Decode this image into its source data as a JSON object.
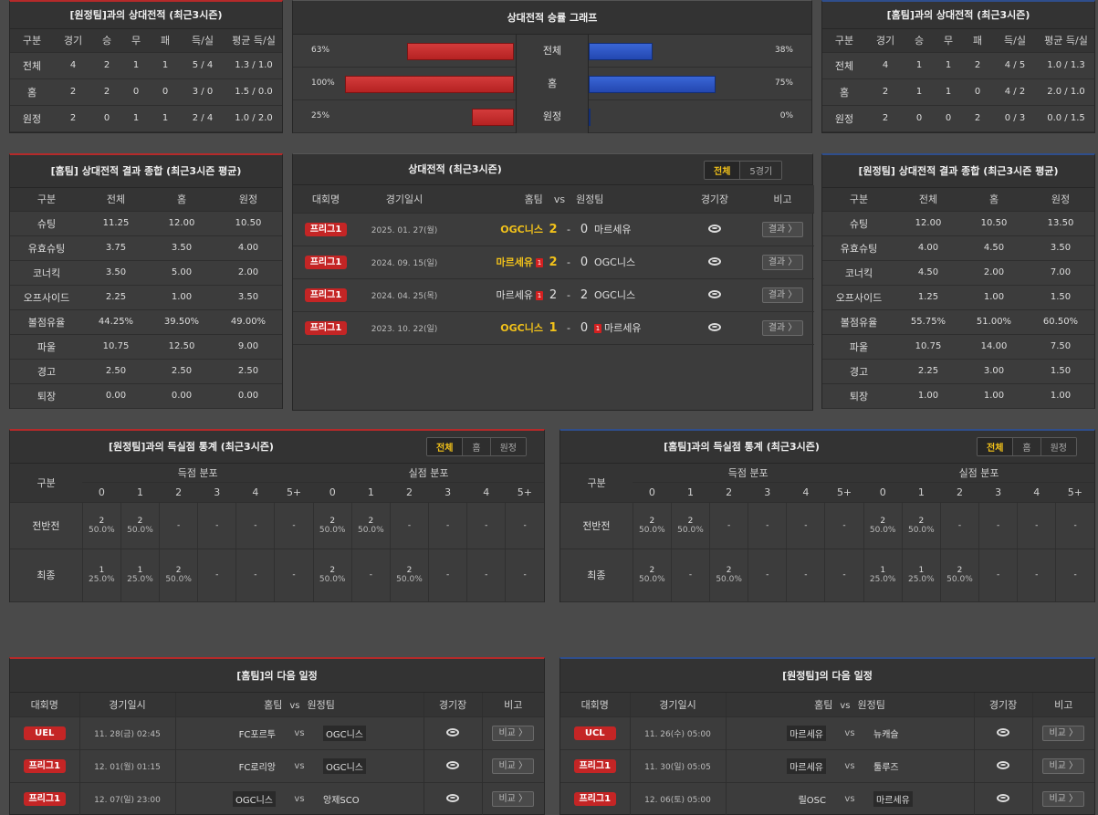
{
  "h2h_away": {
    "title": "[원정팀]과의 상대전적 (최근3시즌)",
    "headers": [
      "구분",
      "경기",
      "승",
      "무",
      "패",
      "득/실",
      "평균 득/실"
    ],
    "rows": [
      [
        "전체",
        "4",
        "2",
        "1",
        "1",
        "5 / 4",
        "1.3 / 1.0"
      ],
      [
        "홈",
        "2",
        "2",
        "0",
        "0",
        "3 / 0",
        "1.5 / 0.0"
      ],
      [
        "원정",
        "2",
        "0",
        "1",
        "1",
        "2 / 4",
        "1.0 / 2.0"
      ]
    ]
  },
  "graph": {
    "title": "상대전적 승률 그래프",
    "rows": [
      {
        "label": "전체",
        "home_pct": "63%",
        "away_pct": "38%",
        "home": 0.63,
        "away": 0.38
      },
      {
        "label": "홈",
        "home_pct": "100%",
        "away_pct": "75%",
        "home": 1.0,
        "away": 0.75
      },
      {
        "label": "원정",
        "home_pct": "25%",
        "away_pct": "0%",
        "home": 0.25,
        "away": 0.0
      }
    ]
  },
  "h2h_home": {
    "title": "[홈팀]과의 상대전적 (최근3시즌)",
    "headers": [
      "구분",
      "경기",
      "승",
      "무",
      "패",
      "득/실",
      "평균 득/실"
    ],
    "rows": [
      [
        "전체",
        "4",
        "1",
        "1",
        "2",
        "4 / 5",
        "1.0 / 1.3"
      ],
      [
        "홈",
        "2",
        "1",
        "1",
        "0",
        "4 / 2",
        "2.0 / 1.0"
      ],
      [
        "원정",
        "2",
        "0",
        "0",
        "2",
        "0 / 3",
        "0.0 / 1.5"
      ]
    ]
  },
  "home_summary": {
    "title": "[홈팀] 상대전적 결과 종합 (최근3시즌 평균)",
    "headers": [
      "구분",
      "전체",
      "홈",
      "원정"
    ],
    "rows": [
      [
        "슈팅",
        "11.25",
        "12.00",
        "10.50"
      ],
      [
        "유효슈팅",
        "3.75",
        "3.50",
        "4.00"
      ],
      [
        "코너킥",
        "3.50",
        "5.00",
        "2.00"
      ],
      [
        "오프사이드",
        "2.25",
        "1.00",
        "3.50"
      ],
      [
        "볼점유율",
        "44.25%",
        "39.50%",
        "49.00%"
      ],
      [
        "파울",
        "10.75",
        "12.50",
        "9.00"
      ],
      [
        "경고",
        "2.50",
        "2.50",
        "2.50"
      ],
      [
        "퇴장",
        "0.00",
        "0.00",
        "0.00"
      ]
    ]
  },
  "results": {
    "title": "상대전적 (최근3시즌)",
    "tabs": [
      "전체",
      "5경기"
    ],
    "headers": {
      "comp": "대회명",
      "date": "경기일시",
      "home": "홈팀",
      "vs": "vs",
      "away": "원정팀",
      "venue": "경기장",
      "note": "비고"
    },
    "rows": [
      {
        "comp": "프리그1",
        "date": "2025. 01. 27(월)",
        "home": "OGC니스",
        "hs": "2",
        "as": "0",
        "away": "마르세유",
        "hl": true,
        "hc": "",
        "ac": "",
        "btn": "결과 〉"
      },
      {
        "comp": "프리그1",
        "date": "2024. 09. 15(일)",
        "home": "마르세유",
        "hs": "2",
        "as": "0",
        "away": "OGC니스",
        "hl": true,
        "hc": "1",
        "ac": "",
        "btn": "결과 〉"
      },
      {
        "comp": "프리그1",
        "date": "2024. 04. 25(목)",
        "home": "마르세유",
        "hs": "2",
        "as": "2",
        "away": "OGC니스",
        "hl": false,
        "hc": "1",
        "ac": "",
        "btn": "결과 〉"
      },
      {
        "comp": "프리그1",
        "date": "2023. 10. 22(일)",
        "home": "OGC니스",
        "hs": "1",
        "as": "0",
        "away": "마르세유",
        "hl": true,
        "hc": "",
        "ac": "1",
        "btn": "결과 〉"
      }
    ]
  },
  "away_summary": {
    "title": "[원정팀] 상대전적 결과 종합 (최근3시즌 평균)",
    "headers": [
      "구분",
      "전체",
      "홈",
      "원정"
    ],
    "rows": [
      [
        "슈팅",
        "12.00",
        "10.50",
        "13.50"
      ],
      [
        "유효슈팅",
        "4.00",
        "4.50",
        "3.50"
      ],
      [
        "코너킥",
        "4.50",
        "2.00",
        "7.00"
      ],
      [
        "오프사이드",
        "1.25",
        "1.00",
        "1.50"
      ],
      [
        "볼점유율",
        "55.75%",
        "51.00%",
        "60.50%"
      ],
      [
        "파울",
        "10.75",
        "14.00",
        "7.50"
      ],
      [
        "경고",
        "2.25",
        "3.00",
        "1.50"
      ],
      [
        "퇴장",
        "1.00",
        "1.00",
        "1.00"
      ]
    ]
  },
  "goals_away": {
    "title": "[원정팀]과의 득실점 통계 (최근3시즌)",
    "tabs": [
      "전체",
      "홈",
      "원정"
    ],
    "label": "구분",
    "scored": "득점 분포",
    "conceded": "실점 분포",
    "cols": [
      "0",
      "1",
      "2",
      "3",
      "4",
      "5+"
    ],
    "rows": [
      {
        "label": "전반전",
        "cells": [
          [
            "2",
            "50.0%"
          ],
          [
            "2",
            "50.0%"
          ],
          [
            "-",
            ""
          ],
          [
            "-",
            ""
          ],
          [
            "-",
            ""
          ],
          [
            "-",
            ""
          ],
          [
            "2",
            "50.0%"
          ],
          [
            "2",
            "50.0%"
          ],
          [
            "-",
            ""
          ],
          [
            "-",
            ""
          ],
          [
            "-",
            ""
          ],
          [
            "-",
            ""
          ]
        ]
      },
      {
        "label": "최종",
        "cells": [
          [
            "1",
            "25.0%"
          ],
          [
            "1",
            "25.0%"
          ],
          [
            "2",
            "50.0%"
          ],
          [
            "-",
            ""
          ],
          [
            "-",
            ""
          ],
          [
            "-",
            ""
          ],
          [
            "2",
            "50.0%"
          ],
          [
            "-",
            ""
          ],
          [
            "2",
            "50.0%"
          ],
          [
            "-",
            ""
          ],
          [
            "-",
            ""
          ],
          [
            "-",
            ""
          ]
        ]
      }
    ]
  },
  "goals_home": {
    "title": "[홈팀]과의 득실점 통계 (최근3시즌)",
    "tabs": [
      "전체",
      "홈",
      "원정"
    ],
    "label": "구분",
    "scored": "득점 분포",
    "conceded": "실점 분포",
    "cols": [
      "0",
      "1",
      "2",
      "3",
      "4",
      "5+"
    ],
    "rows": [
      {
        "label": "전반전",
        "cells": [
          [
            "2",
            "50.0%"
          ],
          [
            "2",
            "50.0%"
          ],
          [
            "-",
            ""
          ],
          [
            "-",
            ""
          ],
          [
            "-",
            ""
          ],
          [
            "-",
            ""
          ],
          [
            "2",
            "50.0%"
          ],
          [
            "2",
            "50.0%"
          ],
          [
            "-",
            ""
          ],
          [
            "-",
            ""
          ],
          [
            "-",
            ""
          ],
          [
            "-",
            ""
          ]
        ]
      },
      {
        "label": "최종",
        "cells": [
          [
            "2",
            "50.0%"
          ],
          [
            "-",
            ""
          ],
          [
            "2",
            "50.0%"
          ],
          [
            "-",
            ""
          ],
          [
            "-",
            ""
          ],
          [
            "-",
            ""
          ],
          [
            "1",
            "25.0%"
          ],
          [
            "1",
            "25.0%"
          ],
          [
            "2",
            "50.0%"
          ],
          [
            "-",
            ""
          ],
          [
            "-",
            ""
          ],
          [
            "-",
            ""
          ]
        ]
      }
    ]
  },
  "next_home": {
    "title": "[홈팀]의 다음 일정",
    "headers": {
      "comp": "대회명",
      "date": "경기일시",
      "home": "홈팀",
      "vs": "vs",
      "away": "원정팀",
      "venue": "경기장",
      "note": "비고"
    },
    "rows": [
      {
        "comp": "UEL",
        "blue": false,
        "date": "11. 28(금) 02:45",
        "home": "FC포르투",
        "away": "OGC니스",
        "hbox": false,
        "abox": true,
        "btn": "비교 〉"
      },
      {
        "comp": "프리그1",
        "blue": false,
        "date": "12. 01(월) 01:15",
        "home": "FC로리앙",
        "away": "OGC니스",
        "hbox": false,
        "abox": true,
        "btn": "비교 〉"
      },
      {
        "comp": "프리그1",
        "blue": false,
        "date": "12. 07(일) 23:00",
        "home": "OGC니스",
        "away": "앙제SCO",
        "hbox": true,
        "abox": false,
        "btn": "비교 〉"
      }
    ]
  },
  "next_away": {
    "title": "[원정팀]의 다음 일정",
    "headers": {
      "comp": "대회명",
      "date": "경기일시",
      "home": "홈팀",
      "vs": "vs",
      "away": "원정팀",
      "venue": "경기장",
      "note": "비고"
    },
    "rows": [
      {
        "comp": "UCL",
        "blue": false,
        "date": "11. 26(수) 05:00",
        "home": "마르세유",
        "away": "뉴캐슬",
        "hbox": true,
        "abox": false,
        "btn": "비교 〉"
      },
      {
        "comp": "프리그1",
        "blue": false,
        "date": "11. 30(일) 05:05",
        "home": "마르세유",
        "away": "툴루즈",
        "hbox": true,
        "abox": false,
        "btn": "비교 〉"
      },
      {
        "comp": "프리그1",
        "blue": false,
        "date": "12. 06(토) 05:00",
        "home": "릴OSC",
        "away": "마르세유",
        "hbox": false,
        "abox": true,
        "btn": "비교 〉"
      }
    ]
  }
}
